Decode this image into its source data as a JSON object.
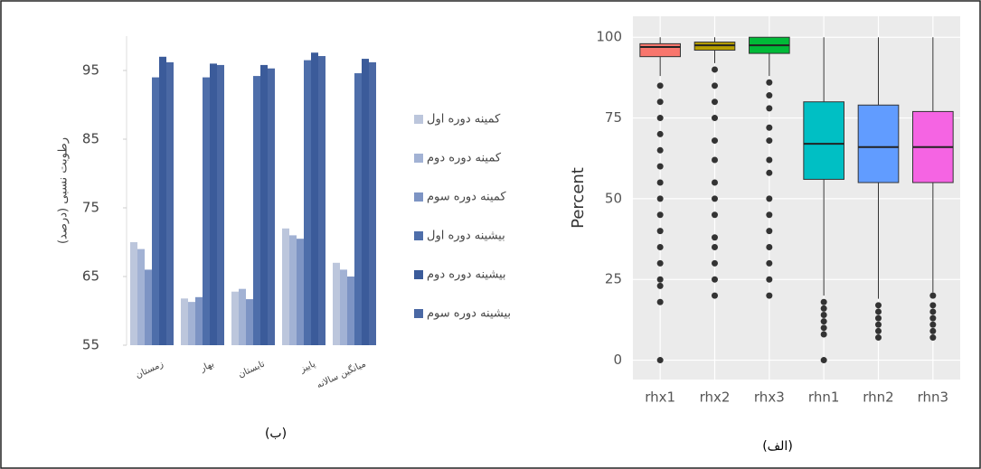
{
  "chart_data": [
    {
      "type": "bar",
      "caption": "(ب)",
      "y_label": "رطوبت نسبی (درصد)",
      "categories": [
        "زمستان",
        "بهار",
        "تابستان",
        "پاییز",
        "میانگین سالانه"
      ],
      "series": [
        {
          "name": "کمینه دوره اول",
          "color": "#bcc6dc",
          "values": [
            70,
            61.8,
            62.8,
            72,
            67
          ]
        },
        {
          "name": "کمینه دوره دوم",
          "color": "#a2b2d4",
          "values": [
            69,
            61.3,
            63.2,
            71,
            66
          ]
        },
        {
          "name": "کمینه دوره سوم",
          "color": "#7d94c4",
          "values": [
            66,
            62,
            61.7,
            70.5,
            65
          ]
        },
        {
          "name": "بیشینه دوره اول",
          "color": "#4e6eaa",
          "values": [
            94,
            94,
            94.2,
            96.5,
            94.6
          ]
        },
        {
          "name": "بیشینه دوره دوم",
          "color": "#3b5b9a",
          "values": [
            97,
            96,
            95.8,
            97.6,
            96.7
          ]
        },
        {
          "name": "بیشینه دوره سوم",
          "color": "#4a68a4",
          "values": [
            96.2,
            95.8,
            95.3,
            97.1,
            96.2
          ]
        }
      ],
      "ylim": [
        55,
        100
      ],
      "yticks": [
        55,
        65,
        75,
        85,
        95
      ]
    },
    {
      "type": "box",
      "caption": "(الف)",
      "y_label": "Percent",
      "categories": [
        "rhx1",
        "rhx2",
        "rhx3",
        "rhn1",
        "rhn2",
        "rhn3"
      ],
      "boxes": [
        {
          "color": "#f8766d",
          "whislo": 88,
          "q1": 94,
          "med": 97,
          "q3": 98,
          "whishi": 100,
          "fliers": [
            0,
            18,
            23,
            25,
            30,
            35,
            40,
            45,
            50,
            55,
            60,
            65,
            70,
            75,
            80,
            85
          ]
        },
        {
          "color": "#b79f00",
          "whislo": 92,
          "q1": 96,
          "med": 97.5,
          "q3": 98.5,
          "whishi": 100,
          "fliers": [
            20,
            25,
            30,
            35,
            38,
            45,
            50,
            55,
            62,
            68,
            75,
            80,
            85,
            90
          ]
        },
        {
          "color": "#00ba38",
          "whislo": 88,
          "q1": 95,
          "med": 97.5,
          "q3": 100,
          "whishi": 100,
          "fliers": [
            20,
            25,
            30,
            35,
            40,
            45,
            50,
            58,
            62,
            68,
            72,
            78,
            82,
            86
          ]
        },
        {
          "color": "#00bfc4",
          "whislo": 20,
          "q1": 56,
          "med": 67,
          "q3": 80,
          "whishi": 100,
          "fliers": [
            0,
            8,
            10,
            12,
            14,
            16,
            18
          ]
        },
        {
          "color": "#619cff",
          "whislo": 19,
          "q1": 55,
          "med": 66,
          "q3": 79,
          "whishi": 100,
          "fliers": [
            7,
            9,
            11,
            13,
            15,
            17
          ]
        },
        {
          "color": "#f564e3",
          "whislo": 21,
          "q1": 55,
          "med": 66,
          "q3": 77,
          "whishi": 100,
          "fliers": [
            7,
            9,
            11,
            13,
            15,
            17,
            20
          ]
        }
      ],
      "ylim": [
        -6,
        106.5
      ],
      "yticks": [
        0,
        25,
        50,
        75,
        100
      ],
      "grid": true
    }
  ]
}
